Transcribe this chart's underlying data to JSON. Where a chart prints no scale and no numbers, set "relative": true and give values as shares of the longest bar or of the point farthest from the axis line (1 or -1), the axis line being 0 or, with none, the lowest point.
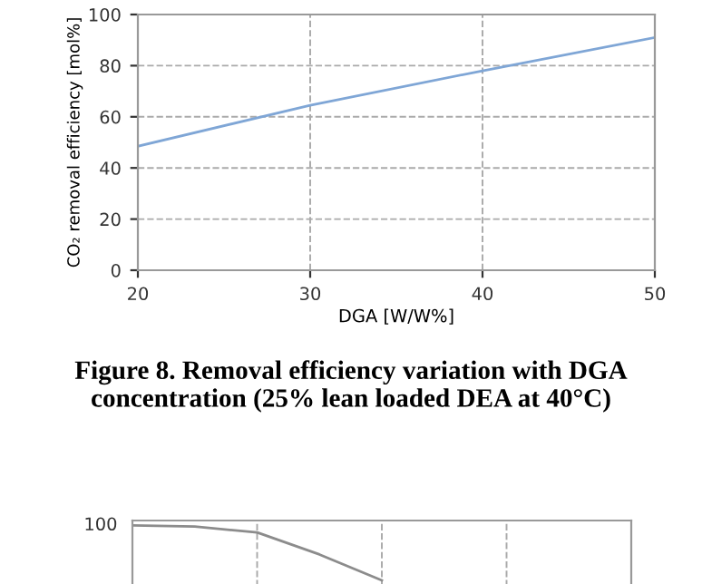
{
  "chart_data": [
    {
      "type": "line",
      "xlabel": "DGA [W/W%]",
      "ylabel": "CO₂ removal efficiency [mol%]",
      "x": [
        20,
        30,
        40,
        50
      ],
      "series": [
        {
          "color": "#7fa6d6",
          "values": [
            48.5,
            64.5,
            78,
            91
          ]
        }
      ],
      "xlim": [
        20,
        50
      ],
      "xticks": [
        20,
        30,
        40,
        50
      ],
      "ylim": [
        0,
        100
      ],
      "yticks": [
        0,
        20,
        40,
        60,
        80,
        100
      ],
      "grid": true,
      "annotations": [
        "Figure 8. Removal efficiency variation with DGA concentration (25% lean loaded DEA at 40°C)"
      ]
    },
    {
      "type": "line",
      "categories": [
        null,
        null,
        null,
        null,
        null,
        null,
        null,
        null,
        null
      ],
      "series": [
        {
          "color": "#8c8c8c",
          "values": [
            1,
            0.98,
            0.873,
            0.472,
            0,
            null,
            null,
            null,
            null
          ]
        }
      ],
      "relative": true,
      "annotations": [
        "100"
      ],
      "grid": "x"
    }
  ]
}
